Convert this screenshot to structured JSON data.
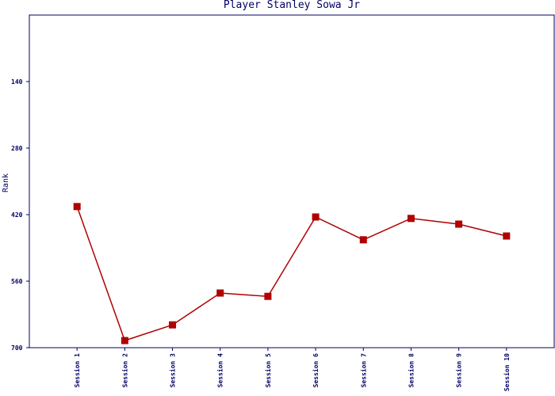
{
  "chart_data": {
    "type": "line",
    "title": "Player Stanley Sowa Jr",
    "y_label": "Rank",
    "categories": [
      "Session 1",
      "Session 2",
      "Session 3",
      "Session 4",
      "Session 5",
      "Session 6",
      "Session 7",
      "Session 8",
      "Session 9",
      "Session 10"
    ],
    "series": [
      {
        "name": "Rank",
        "color": "#b00000",
        "values": [
          403,
          685,
          652,
          585,
          592,
          425,
          473,
          428,
          440,
          465
        ]
      }
    ],
    "ylim": [
      700,
      0
    ],
    "yticks": [
      700,
      560,
      420,
      280,
      140
    ],
    "grid": false
  }
}
